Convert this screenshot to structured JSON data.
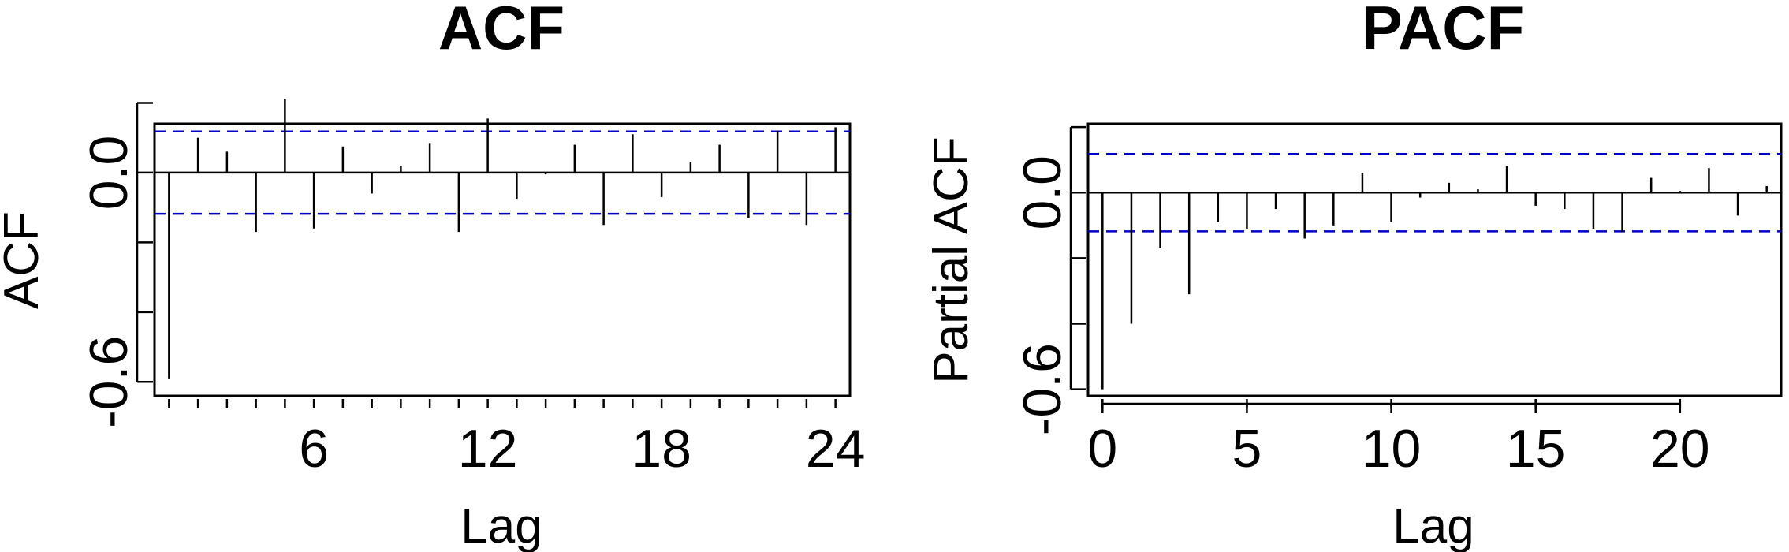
{
  "chart_data": [
    {
      "type": "bar",
      "title": "ACF",
      "xlabel": "Lag",
      "ylabel": "ACF",
      "xlim": [
        0.5,
        24.5
      ],
      "ylim": [
        -0.64,
        0.14
      ],
      "x_ticks": [
        6,
        12,
        18,
        24
      ],
      "x_minor_ticks": [
        1,
        2,
        3,
        4,
        5,
        6,
        7,
        8,
        9,
        10,
        11,
        12,
        13,
        14,
        15,
        16,
        17,
        18,
        19,
        20,
        21,
        22,
        23,
        24
      ],
      "y_ticks": [
        -0.6,
        -0.4,
        -0.2,
        0.0,
        0.2
      ],
      "y_tick_labels": [
        {
          "value": -0.6,
          "label": "-0.6"
        },
        {
          "value": 0.0,
          "label": "0.0"
        }
      ],
      "conf_limit": 0.118,
      "conf_color": "#0000cc",
      "x": [
        1,
        2,
        3,
        4,
        5,
        6,
        7,
        8,
        9,
        10,
        11,
        12,
        13,
        14,
        15,
        16,
        17,
        18,
        19,
        20,
        21,
        22,
        23,
        24
      ],
      "values": [
        -0.59,
        0.1,
        0.06,
        -0.17,
        0.21,
        -0.16,
        0.075,
        -0.06,
        0.02,
        0.085,
        -0.17,
        0.155,
        -0.075,
        -0.005,
        0.08,
        -0.15,
        0.11,
        -0.07,
        0.03,
        0.08,
        -0.13,
        0.12,
        -0.15,
        0.13
      ],
      "grid": false
    },
    {
      "type": "bar",
      "title": "PACF",
      "xlabel": "Lag",
      "ylabel": "Partial ACF",
      "xlim": [
        -0.5,
        23.5
      ],
      "ylim": [
        -0.62,
        0.21
      ],
      "x_ticks": [
        0,
        5,
        10,
        15,
        20
      ],
      "y_ticks": [
        -0.6,
        -0.4,
        -0.2,
        0.0,
        0.2
      ],
      "y_tick_labels": [
        {
          "value": -0.6,
          "label": "-0.6"
        },
        {
          "value": 0.0,
          "label": "0.0"
        }
      ],
      "conf_limit": 0.118,
      "conf_color": "#0000cc",
      "x": [
        0,
        1,
        2,
        3,
        4,
        5,
        6,
        7,
        8,
        9,
        10,
        11,
        12,
        13,
        14,
        15,
        16,
        17,
        18,
        19,
        20,
        21,
        22,
        23
      ],
      "values": [
        -0.6,
        -0.4,
        -0.17,
        -0.31,
        -0.09,
        -0.11,
        -0.05,
        -0.14,
        -0.1,
        0.06,
        -0.09,
        -0.015,
        0.03,
        0.01,
        0.08,
        -0.04,
        -0.05,
        -0.11,
        -0.12,
        0.045,
        0.005,
        0.075,
        -0.07,
        0.02
      ],
      "grid": false
    }
  ]
}
